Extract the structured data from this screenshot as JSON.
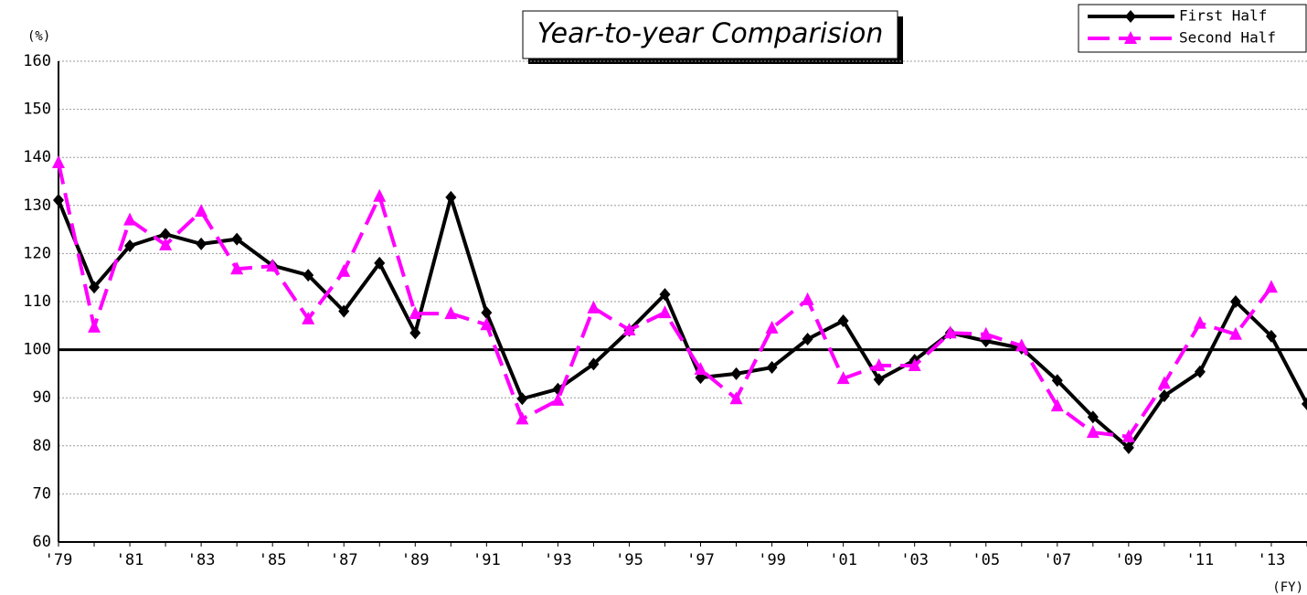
{
  "chart_data": {
    "type": "line",
    "title": "Year-to-year Comparision",
    "y_unit_label": "(%)",
    "x_unit_label": "(FY)",
    "categories": [
      "'79",
      null,
      "'81",
      null,
      "'83",
      null,
      "'85",
      null,
      "'87",
      null,
      "'89",
      null,
      "'91",
      null,
      "'93",
      null,
      "'95",
      null,
      "'97",
      null,
      "'99",
      null,
      "'01",
      null,
      "'03",
      null,
      "'05",
      null,
      "'07",
      null,
      "'09",
      null,
      "'11",
      null,
      "'13",
      null
    ],
    "series": [
      {
        "name": "First Half",
        "color": "#000000",
        "marker": "diamond",
        "dashed": false,
        "values": [
          131.1,
          113,
          121.6,
          124,
          122,
          123,
          117.5,
          115.5,
          108,
          118,
          103.5,
          131.7,
          107.7,
          89.8,
          91.8,
          97,
          104,
          111.5,
          94.2,
          95,
          96.3,
          102.2,
          106,
          93.8,
          97.8,
          103.5,
          101.8,
          100.3,
          93.6,
          86,
          79.6,
          90.4,
          95.4,
          110,
          102.8,
          88.7
        ]
      },
      {
        "name": "Second Half",
        "color": "#ff00ff",
        "marker": "triangle",
        "dashed": true,
        "values": [
          138.9,
          104.7,
          127,
          121.8,
          128.8,
          116.8,
          117.4,
          106.4,
          116.3,
          131.9,
          107.5,
          107.5,
          105.2,
          85.6,
          89.5,
          108.7,
          104.1,
          107.7,
          95.9,
          89.8,
          104.5,
          110.4,
          94,
          96.7,
          96.7,
          103.5,
          103.2,
          100.8,
          88.3,
          82.8,
          81.9,
          93,
          105.5,
          103.2,
          113,
          null
        ]
      }
    ],
    "reference_line": 100,
    "ylim": [
      60,
      160
    ],
    "yticks": [
      60,
      70,
      80,
      90,
      100,
      110,
      120,
      130,
      140,
      150,
      160
    ],
    "grid": true,
    "legend": "top-right"
  }
}
